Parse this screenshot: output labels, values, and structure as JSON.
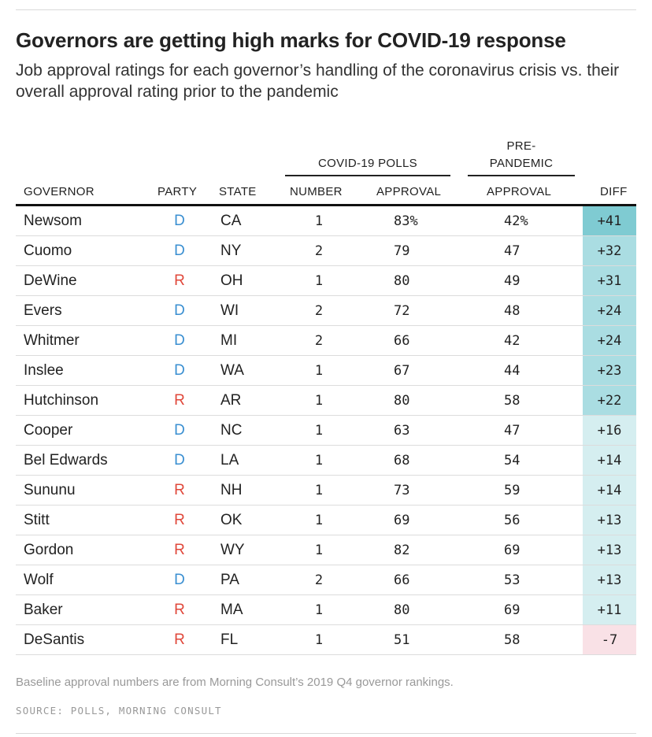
{
  "title": "Governors are getting high marks for COVID-19 response",
  "subtitle": "Job approval ratings for each governor’s handling of the coronavirus crisis vs. their overall approval rating prior to the pandemic",
  "column_groups": {
    "covid_polls": "COVID-19 POLLS",
    "pre_pandemic_line1": "PRE-",
    "pre_pandemic_line2": "PANDEMIC"
  },
  "columns": {
    "governor": "GOVERNOR",
    "party": "PARTY",
    "state": "STATE",
    "number": "NUMBER",
    "approval": "APPROVAL",
    "pre_approval": "APPROVAL",
    "diff": "DIFF"
  },
  "colors": {
    "dem": "#3a8fd1",
    "rep": "#e0473a",
    "diff_high": "#7fcbd2",
    "diff_mid": "#aadde2",
    "diff_low": "#d5eef0",
    "diff_neg": "#f9e1e6"
  },
  "chart_data": {
    "type": "table",
    "title": "Governors are getting high marks for COVID-19 response",
    "columns": [
      "GOVERNOR",
      "PARTY",
      "STATE",
      "NUMBER",
      "APPROVAL",
      "APPROVAL",
      "DIFF"
    ],
    "rows": [
      {
        "governor": "Newsom",
        "party": "D",
        "state": "CA",
        "number": "1",
        "covid_approval": "83%",
        "pre_approval": "42%",
        "diff": "+41",
        "diff_value": 41
      },
      {
        "governor": "Cuomo",
        "party": "D",
        "state": "NY",
        "number": "2",
        "covid_approval": "79",
        "pre_approval": "47",
        "diff": "+32",
        "diff_value": 32
      },
      {
        "governor": "DeWine",
        "party": "R",
        "state": "OH",
        "number": "1",
        "covid_approval": "80",
        "pre_approval": "49",
        "diff": "+31",
        "diff_value": 31
      },
      {
        "governor": "Evers",
        "party": "D",
        "state": "WI",
        "number": "2",
        "covid_approval": "72",
        "pre_approval": "48",
        "diff": "+24",
        "diff_value": 24
      },
      {
        "governor": "Whitmer",
        "party": "D",
        "state": "MI",
        "number": "2",
        "covid_approval": "66",
        "pre_approval": "42",
        "diff": "+24",
        "diff_value": 24
      },
      {
        "governor": "Inslee",
        "party": "D",
        "state": "WA",
        "number": "1",
        "covid_approval": "67",
        "pre_approval": "44",
        "diff": "+23",
        "diff_value": 23
      },
      {
        "governor": "Hutchinson",
        "party": "R",
        "state": "AR",
        "number": "1",
        "covid_approval": "80",
        "pre_approval": "58",
        "diff": "+22",
        "diff_value": 22
      },
      {
        "governor": "Cooper",
        "party": "D",
        "state": "NC",
        "number": "1",
        "covid_approval": "63",
        "pre_approval": "47",
        "diff": "+16",
        "diff_value": 16
      },
      {
        "governor": "Bel Edwards",
        "party": "D",
        "state": "LA",
        "number": "1",
        "covid_approval": "68",
        "pre_approval": "54",
        "diff": "+14",
        "diff_value": 14
      },
      {
        "governor": "Sununu",
        "party": "R",
        "state": "NH",
        "number": "1",
        "covid_approval": "73",
        "pre_approval": "59",
        "diff": "+14",
        "diff_value": 14
      },
      {
        "governor": "Stitt",
        "party": "R",
        "state": "OK",
        "number": "1",
        "covid_approval": "69",
        "pre_approval": "56",
        "diff": "+13",
        "diff_value": 13
      },
      {
        "governor": "Gordon",
        "party": "R",
        "state": "WY",
        "number": "1",
        "covid_approval": "82",
        "pre_approval": "69",
        "diff": "+13",
        "diff_value": 13
      },
      {
        "governor": "Wolf",
        "party": "D",
        "state": "PA",
        "number": "2",
        "covid_approval": "66",
        "pre_approval": "53",
        "diff": "+13",
        "diff_value": 13
      },
      {
        "governor": "Baker",
        "party": "R",
        "state": "MA",
        "number": "1",
        "covid_approval": "80",
        "pre_approval": "69",
        "diff": "+11",
        "diff_value": 11
      },
      {
        "governor": "DeSantis",
        "party": "R",
        "state": "FL",
        "number": "1",
        "covid_approval": "51",
        "pre_approval": "58",
        "diff": "-7",
        "diff_value": -7
      }
    ]
  },
  "footnote": "Baseline approval numbers are from Morning Consult’s 2019 Q4 governor rankings.",
  "source": "SOURCE: POLLS, MORNING CONSULT"
}
